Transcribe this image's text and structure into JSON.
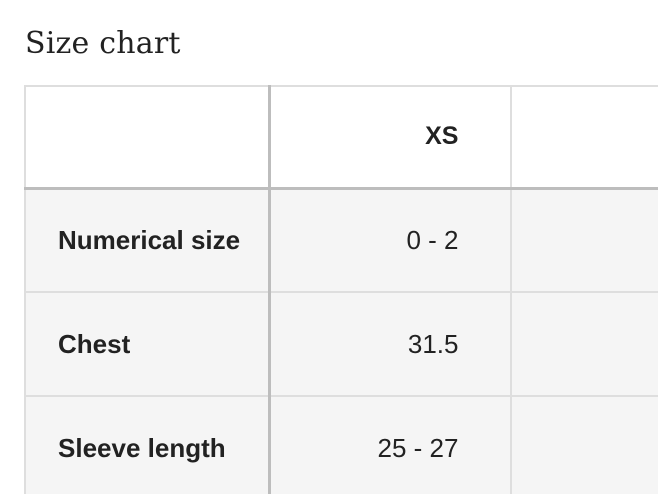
{
  "page": {
    "title": "Size chart"
  },
  "table": {
    "header": {
      "corner_label": "",
      "columns": [
        "XS"
      ]
    },
    "rows": [
      {
        "label": "Numerical size",
        "values": [
          "0 - 2"
        ]
      },
      {
        "label": "Chest",
        "values": [
          "31.5"
        ]
      },
      {
        "label": "Sleeve length",
        "values": [
          "25 - 27"
        ]
      }
    ]
  }
}
